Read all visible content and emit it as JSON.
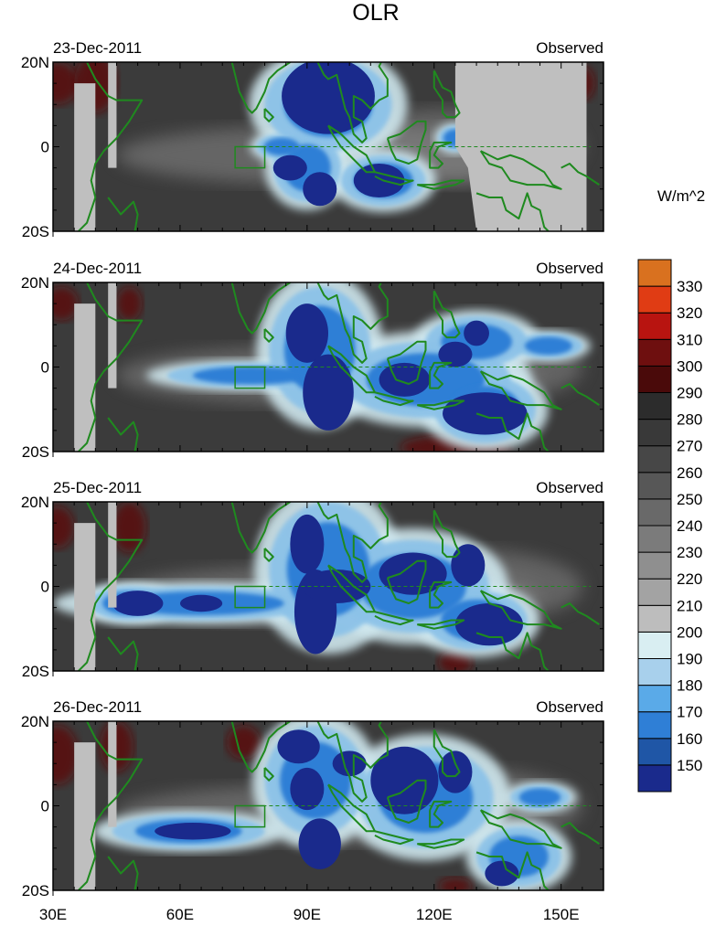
{
  "chart_data": {
    "type": "heatmap",
    "title": "OLR",
    "units": "W/m^2",
    "tag": "Observed",
    "x_ticks": [
      {
        "lon": 30,
        "label": "30E"
      },
      {
        "lon": 60,
        "label": "60E"
      },
      {
        "lon": 90,
        "label": "90E"
      },
      {
        "lon": 120,
        "label": "120E"
      },
      {
        "lon": 150,
        "label": "150E"
      }
    ],
    "y_ticks": [
      {
        "lat": 20,
        "label": "20N"
      },
      {
        "lat": 0,
        "label": "0"
      },
      {
        "lat": -20,
        "label": "20S"
      }
    ],
    "xlim": [
      30,
      160
    ],
    "ylim": [
      -20,
      20
    ],
    "box_region": {
      "lon": [
        73,
        80
      ],
      "lat": [
        -5,
        0
      ]
    },
    "colorbar": {
      "levels": [
        150,
        160,
        170,
        180,
        190,
        200,
        210,
        220,
        230,
        240,
        250,
        260,
        270,
        280,
        290,
        300,
        310,
        320,
        330
      ],
      "colors": [
        "#1a2a8c",
        "#1f56a6",
        "#2f7fd6",
        "#5aaae8",
        "#a8d0ec",
        "#d9eef2",
        "#bdbdbd",
        "#a3a3a3",
        "#8f8f8f",
        "#7b7b7b",
        "#696969",
        "#575757",
        "#474747",
        "#393939",
        "#2c2c2c",
        "#4a0a0a",
        "#6e0f0f",
        "#b81410",
        "#e03c14",
        "#d9711f"
      ]
    },
    "panels": [
      {
        "date": "23-Dec-2011",
        "deep": [
          [
            95,
            12,
            11,
            9
          ],
          [
            107,
            -8,
            6,
            4
          ],
          [
            93,
            -10,
            4,
            4
          ],
          [
            86,
            -5,
            4,
            3
          ]
        ],
        "conv": [
          [
            95,
            10,
            15,
            11
          ],
          [
            108,
            -8,
            10,
            6
          ],
          [
            90,
            -5,
            8,
            8
          ],
          [
            84,
            0,
            6,
            3
          ],
          [
            125,
            2,
            4,
            3
          ]
        ],
        "dry": [
          [
            31,
            15,
            5,
            5
          ],
          [
            40,
            15,
            5,
            7
          ],
          [
            155,
            15,
            3,
            4
          ]
        ]
      },
      {
        "date": "24-Dec-2011",
        "deep": [
          [
            90,
            8,
            5,
            7
          ],
          [
            95,
            -6,
            6,
            9
          ],
          [
            132,
            -11,
            10,
            5
          ],
          [
            113,
            -3,
            6,
            4
          ],
          [
            125,
            3,
            4,
            3
          ],
          [
            130,
            8,
            3,
            3
          ]
        ],
        "conv": [
          [
            93,
            4,
            12,
            15
          ],
          [
            118,
            -3,
            20,
            9
          ],
          [
            130,
            6,
            12,
            6
          ],
          [
            77,
            -2,
            20,
            3
          ],
          [
            147,
            5,
            8,
            3
          ],
          [
            132,
            -10,
            12,
            8
          ]
        ],
        "dry": [
          [
            32,
            15,
            4,
            4
          ],
          [
            48,
            15,
            3,
            4
          ],
          [
            125,
            -19,
            13,
            3
          ]
        ]
      },
      {
        "date": "25-Dec-2011",
        "deep": [
          [
            90,
            10,
            4,
            7
          ],
          [
            92,
            -6,
            5,
            10
          ],
          [
            97,
            0,
            8,
            4
          ],
          [
            115,
            3,
            8,
            5
          ],
          [
            128,
            5,
            4,
            5
          ],
          [
            133,
            -9,
            8,
            5
          ],
          [
            50,
            -4,
            6,
            3
          ],
          [
            65,
            -4,
            5,
            2
          ]
        ],
        "conv": [
          [
            95,
            4,
            14,
            16
          ],
          [
            115,
            0,
            18,
            11
          ],
          [
            130,
            -8,
            12,
            7
          ],
          [
            65,
            -4,
            28,
            4
          ],
          [
            48,
            -4,
            9,
            4
          ]
        ],
        "dry": [
          [
            31,
            14,
            4,
            5
          ],
          [
            48,
            14,
            4,
            6
          ],
          [
            90,
            15,
            4,
            4
          ],
          [
            125,
            -18,
            4,
            3
          ]
        ]
      },
      {
        "date": "26-Dec-2011",
        "deep": [
          [
            88,
            14,
            5,
            4
          ],
          [
            90,
            4,
            4,
            5
          ],
          [
            93,
            -9,
            5,
            6
          ],
          [
            113,
            6,
            8,
            8
          ],
          [
            125,
            8,
            4,
            5
          ],
          [
            136,
            -16,
            4,
            3
          ],
          [
            63,
            -6,
            9,
            2
          ],
          [
            100,
            10,
            4,
            3
          ]
        ],
        "conv": [
          [
            92,
            6,
            12,
            13
          ],
          [
            118,
            2,
            16,
            12
          ],
          [
            140,
            -12,
            10,
            7
          ],
          [
            62,
            -6,
            18,
            4
          ],
          [
            145,
            2,
            7,
            3
          ]
        ],
        "dry": [
          [
            31,
            12,
            5,
            7
          ],
          [
            45,
            14,
            4,
            6
          ],
          [
            75,
            15,
            4,
            4
          ],
          [
            125,
            -19,
            4,
            2
          ]
        ]
      }
    ]
  }
}
